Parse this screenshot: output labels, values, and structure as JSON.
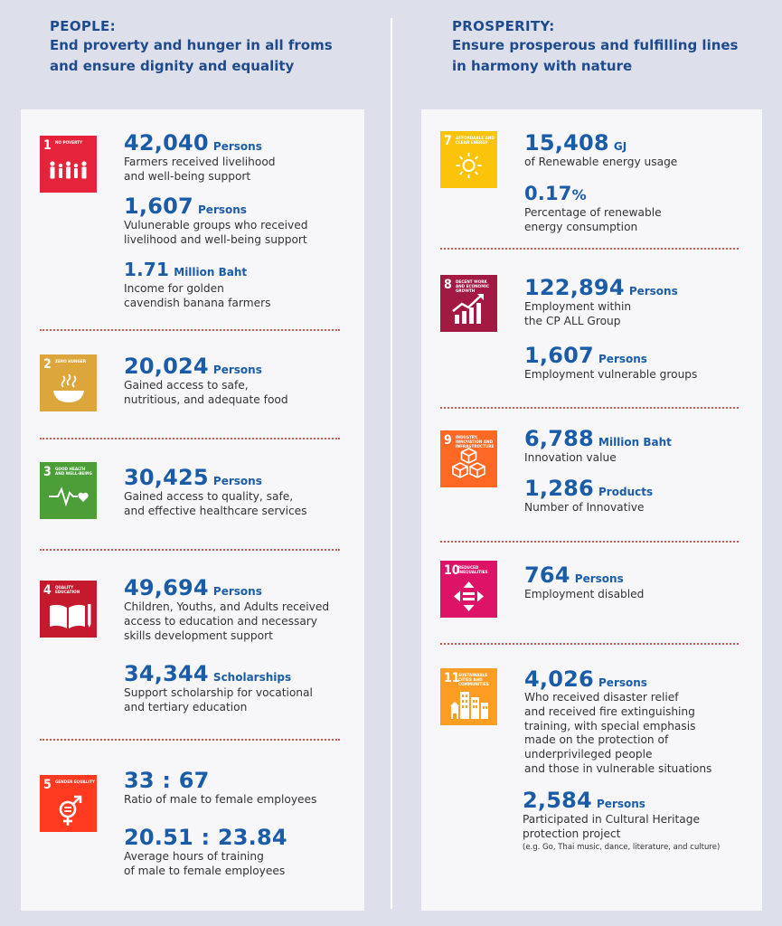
{
  "people": {
    "title": "PEOPLE:",
    "subtitle_line1": "End proverty and hunger in all froms",
    "subtitle_line2": "and ensure dignity and equality",
    "goals": [
      {
        "number": "1",
        "label": "No poverty",
        "color": "#e5243b",
        "icon": "family-icon",
        "stats": [
          {
            "value": "42,040",
            "unit": "Persons",
            "desc": "Farmers received livelihood\nand well-being support"
          },
          {
            "value": "1,607",
            "unit": "Persons",
            "desc": "Vulunerable groups who received\nlivelihood and well-being support"
          },
          {
            "value": "1.71",
            "unit": "Million Baht",
            "desc": "Income for golden\ncavendish banana farmers"
          }
        ]
      },
      {
        "number": "2",
        "label": "Zero hunger",
        "color": "#dda63a",
        "icon": "bowl-icon",
        "stats": [
          {
            "value": "20,024",
            "unit": "Persons",
            "desc": "Gained access to safe,\nnutritious, and adequate food"
          }
        ]
      },
      {
        "number": "3",
        "label": "Good health and well-being",
        "color": "#4c9f38",
        "icon": "heartbeat-icon",
        "stats": [
          {
            "value": "30,425",
            "unit": "Persons",
            "desc": "Gained access to quality, safe,\nand effective healthcare services"
          }
        ]
      },
      {
        "number": "4",
        "label": "Quality education",
        "color": "#c5192d",
        "icon": "book-pencil-icon",
        "stats": [
          {
            "value": "49,694",
            "unit": "Persons",
            "desc": "Children, Youths, and Adults received\naccess to education and necessary\nskills development support"
          },
          {
            "value": "34,344",
            "unit": "Scholarships",
            "desc": "Support scholarship for vocational\nand tertiary education"
          }
        ]
      },
      {
        "number": "5",
        "label": "Gender equality",
        "color": "#ff3a21",
        "icon": "gender-equality-icon",
        "stats": [
          {
            "value": "33 : 67",
            "unit": "",
            "desc": "Ratio of male to female employees"
          },
          {
            "value": "20.51 : 23.84",
            "unit": "",
            "desc": "Average hours of training\nof male to female employees"
          }
        ]
      }
    ]
  },
  "prosperity": {
    "title": "PROSPERITY:",
    "subtitle_line1": "Ensure prosperous and fulfilling lines",
    "subtitle_line2": "in harmony with nature",
    "goals": [
      {
        "number": "7",
        "label": "Affordable and clean energy",
        "color": "#fcc30b",
        "icon": "sun-icon",
        "stats": [
          {
            "value": "15,408",
            "unit": "GJ",
            "desc": "of Renewable energy usage"
          },
          {
            "value": "0.17",
            "unit": "%",
            "desc": "Percentage of renewable\nenergy consumption"
          }
        ]
      },
      {
        "number": "8",
        "label": "Decent work and economic growth",
        "color": "#a21942",
        "icon": "growth-chart-icon",
        "stats": [
          {
            "value": "122,894",
            "unit": "Persons",
            "desc": "Employment within\nthe CP ALL Group"
          },
          {
            "value": "1,607",
            "unit": "Persons",
            "desc": "Employment vulnerable groups"
          }
        ]
      },
      {
        "number": "9",
        "label": "Industry, innovation and infrastructure",
        "color": "#fd6925",
        "icon": "cubes-icon",
        "stats": [
          {
            "value": "6,788",
            "unit": "Million Baht",
            "desc": "Innovation value"
          },
          {
            "value": "1,286",
            "unit": "Products",
            "desc": "Number of Innovative"
          }
        ]
      },
      {
        "number": "10",
        "label": "Reduced inequalities",
        "color": "#dd1367",
        "icon": "equal-arrows-icon",
        "stats": [
          {
            "value": "764",
            "unit": "Persons",
            "desc": "Employment disabled"
          }
        ]
      },
      {
        "number": "11",
        "label": "Sustainable cities and communities",
        "color": "#fd9d24",
        "icon": "city-icon",
        "stats": [
          {
            "value": "4,026",
            "unit": "Persons",
            "desc": "Who received disaster relief\nand received fire extinguishing\ntraining, with special emphasis\nmade on the protection of\nunderprivileged people\nand those in vulnerable situations"
          },
          {
            "value": "2,584",
            "unit": "Persons",
            "desc": "Participated in Cultural Heritage\nprotection project",
            "note": "(e.g. Go, Thai music, dance, literature, and culture)"
          }
        ]
      }
    ]
  }
}
